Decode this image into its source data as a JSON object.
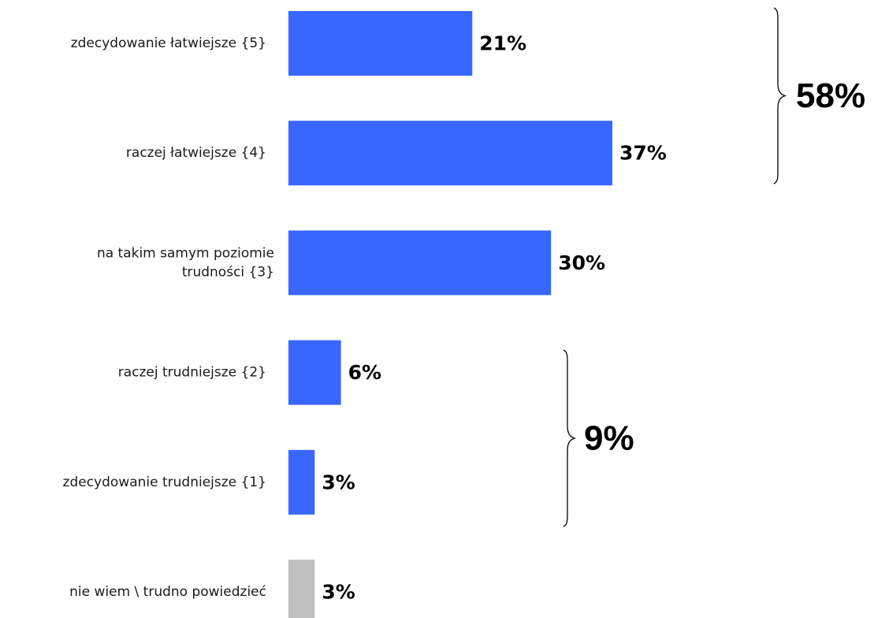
{
  "chart_data": {
    "type": "bar",
    "orientation": "horizontal",
    "title": "",
    "xlabel": "",
    "ylabel": "",
    "xlim": [
      0,
      37
    ],
    "grid": false,
    "legend": "none",
    "categories": [
      [
        "zdecydowanie łatwiejsze {5}"
      ],
      [
        "raczej łatwiejsze {4}"
      ],
      [
        "na takim samym poziomie",
        "trudności {3}"
      ],
      [
        "raczej trudniejsze {2}"
      ],
      [
        "zdecydowanie trudniejsze {1}"
      ],
      [
        "nie wiem \\ trudno powiedzieć"
      ]
    ],
    "values": [
      21,
      37,
      30,
      6,
      3,
      3
    ],
    "value_labels": [
      "21%",
      "37%",
      "30%",
      "6%",
      "3%",
      "3%"
    ],
    "colors": [
      "#3867fe",
      "#3867fe",
      "#3867fe",
      "#3867fe",
      "#3867fe",
      "#bfbfbf"
    ],
    "groups": [
      {
        "label": "58%",
        "from": 0,
        "to": 1
      },
      {
        "label": "9%",
        "from": 3,
        "to": 4
      }
    ]
  }
}
